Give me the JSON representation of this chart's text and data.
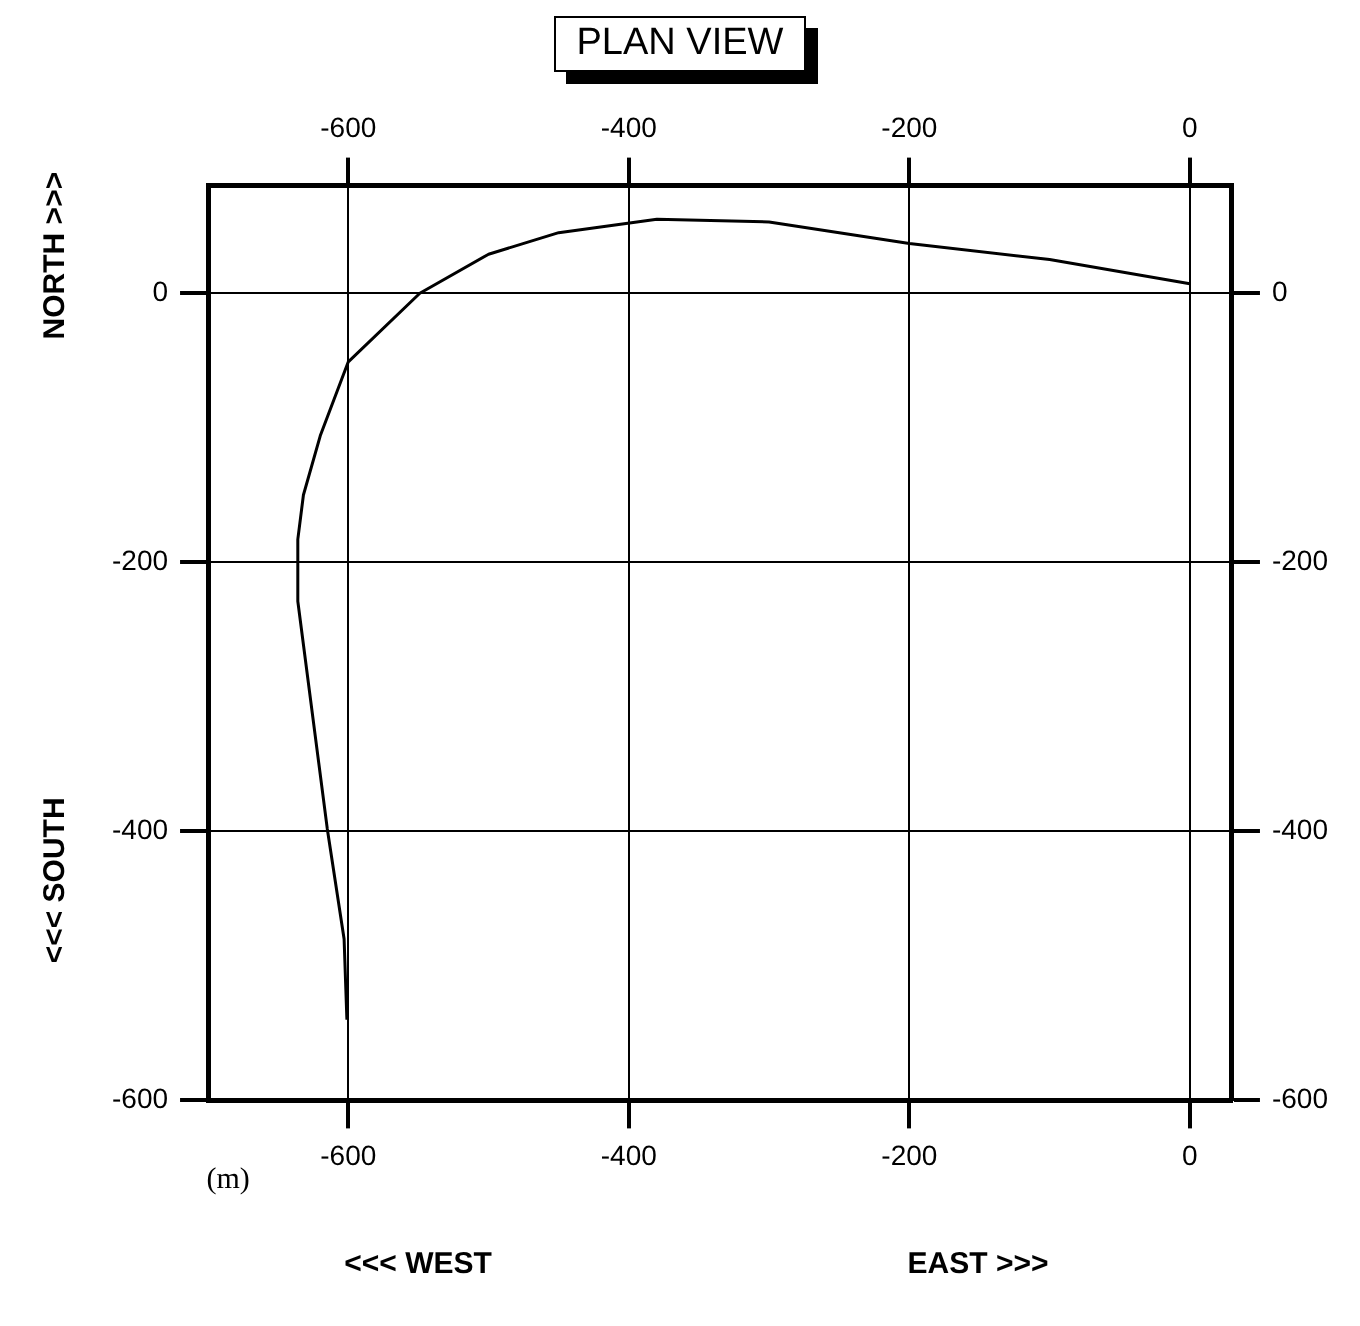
{
  "chart_data": {
    "type": "line",
    "title": "PLAN VIEW",
    "series": [
      {
        "color": "#000000",
        "x": [
          0,
          -100,
          -200,
          -300,
          -380,
          -450,
          -500,
          -549,
          -600,
          -620,
          -632,
          -636,
          -636,
          -615,
          -603,
          -601
        ],
        "values": [
          7,
          25,
          37,
          53,
          55,
          45,
          29,
          0,
          -51,
          -106,
          -150,
          -183,
          -229,
          -398,
          -480,
          -540
        ]
      }
    ],
    "xlim": [
      -700,
      30
    ],
    "xticks": [
      -600,
      -400,
      -200,
      0
    ],
    "x2lim": [
      -700,
      30
    ],
    "x2ticks": [
      -600,
      -400,
      -200,
      0
    ],
    "ylim": [
      -600,
      80
    ],
    "yticks": [
      -600,
      -400,
      -200,
      0
    ],
    "y2lim": [
      -600,
      80
    ],
    "y2ticks": [
      -600,
      -400,
      -200,
      0
    ],
    "grid": true,
    "annotations": [
      "(m)",
      "<<< WEST",
      "EAST >>>",
      "<<< SOUTH",
      "NORTH >>>"
    ]
  }
}
